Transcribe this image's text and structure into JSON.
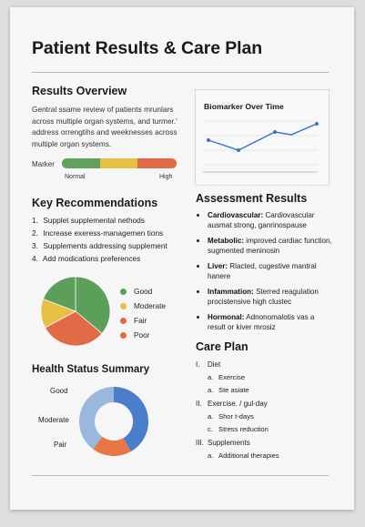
{
  "title": "Patient Results & Care Plan",
  "results_overview": {
    "heading": "Results Overview",
    "text_lines": [
      "Gentral ssame review of patients mrunlars",
      "across multiple organ systems, and turmer.'",
      "address orrengtihs and weeknesses across",
      "multiple organ systems."
    ],
    "marker_label": "Marker",
    "marker_low_label": "Normal",
    "marker_high_label": "High",
    "marker_colors": [
      "#5fa15d",
      "#e7bf45",
      "#e06a46"
    ]
  },
  "biomarker": {
    "title": "Biomarker Over Time",
    "line_color": "#3a72c4"
  },
  "key_recommendations": {
    "heading": "Key Recommendations",
    "items": [
      "Supplet supplemental nethods",
      "Increase exeress-managemen tions",
      "Supplements addressing supplement",
      "Add modications preferences"
    ]
  },
  "pie_legend": [
    {
      "label": "Good",
      "color": "#5c9f5b"
    },
    {
      "label": "Moderate",
      "color": "#e8bf45"
    },
    {
      "label": "Fair",
      "color": "#e06a46"
    },
    {
      "label": "Poor",
      "color": "#e06a46"
    }
  ],
  "pie_colors": [
    "#5c9f5b",
    "#e06a46",
    "#e8bf45"
  ],
  "health_status": {
    "heading": "Health Status Summary",
    "labels": [
      "Good",
      "Moderate",
      "Pair"
    ],
    "donut_colors": [
      "#4a7ec8",
      "#e87546",
      "#9ab7dd"
    ]
  },
  "assessment": {
    "heading": "Assessment Results",
    "items": [
      {
        "label": "Cardiovascular:",
        "text": "Cardiovascular ausmat strong, ganrinospause"
      },
      {
        "label": "Metabolic:",
        "text": "improved cardiac function, sugmented meninosin"
      },
      {
        "label": "Liver:",
        "text": "Rlacted, cugestive mantral hanere"
      },
      {
        "label": "Infammation:",
        "text": "Sterred reagulation procistensive high clustec"
      },
      {
        "label": "Hormonal:",
        "text": "Adnonomalotis vas a result or kiver mrosiz"
      }
    ]
  },
  "care_plan": {
    "heading": "Care Plan",
    "sections": [
      {
        "numeral": "I.",
        "title": "Diet",
        "items": [
          {
            "letter": "a.",
            "text": "Exercise"
          },
          {
            "letter": "a.",
            "text": "Ste asiate"
          }
        ]
      },
      {
        "numeral": "II.",
        "title": "Exercise. / gul·day",
        "items": [
          {
            "letter": "a.",
            "text": "Shor t-days"
          },
          {
            "letter": "c.",
            "text": "Stress reduction"
          }
        ]
      },
      {
        "numeral": "III.",
        "title": "Supplements",
        "items": [
          {
            "letter": "a.",
            "text": "Additional therapies"
          }
        ]
      }
    ]
  }
}
